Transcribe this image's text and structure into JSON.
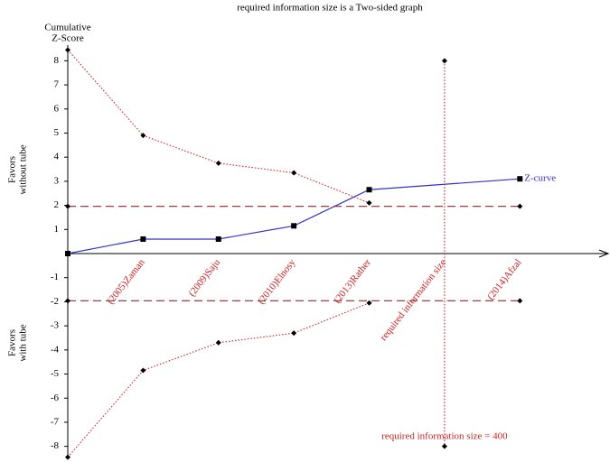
{
  "chart_data": {
    "type": "line",
    "title": "required information size is a Two-sided graph",
    "y_label": [
      "Cumulative",
      "Z-Score"
    ],
    "upper_side_label": [
      "Favors",
      "without tube"
    ],
    "lower_side_label": [
      "Favors",
      "with tube"
    ],
    "categories": [
      null,
      "(2005)Zaman",
      "(2009)Saju",
      "(2010)Elnosy",
      "(2013)Rather",
      "required information size",
      "(2014)Afzal"
    ],
    "xlim": [
      0,
      7.1
    ],
    "ylim": [
      -8.5,
      8.5
    ],
    "yticks": [
      -8,
      -7,
      -6,
      -5,
      -4,
      -3,
      -2,
      -1,
      1,
      2,
      3,
      4,
      5,
      6,
      7,
      8
    ],
    "series": [
      {
        "name": "Z-curve",
        "color": "#3333cc",
        "style": "solid",
        "marker": "square",
        "x": [
          0,
          1,
          2,
          3,
          4,
          6
        ],
        "values": [
          0,
          0.6,
          0.6,
          1.15,
          2.65,
          3.1
        ]
      },
      {
        "color": "#cc2222",
        "style": "dotted",
        "marker": "diamond",
        "x": [
          0,
          1,
          2,
          3,
          4
        ],
        "values": [
          8.45,
          4.9,
          3.75,
          3.35,
          2.1
        ]
      },
      {
        "color": "#cc2222",
        "style": "dotted",
        "marker": "diamond",
        "x": [
          0,
          1,
          2,
          3,
          4
        ],
        "values": [
          -8.45,
          -4.85,
          -3.7,
          -3.3,
          -2.05
        ]
      },
      {
        "color": "#8b2a2a",
        "style": "dashed",
        "marker": "diamond",
        "x": [
          0,
          6
        ],
        "values": [
          1.96,
          1.96
        ]
      },
      {
        "color": "#8b2a2a",
        "style": "dashed",
        "marker": "diamond",
        "x": [
          0,
          6
        ],
        "values": [
          -1.96,
          -1.96
        ]
      },
      {
        "color": "#cc2222",
        "style": "dotted",
        "marker": "diamond",
        "x": [
          5,
          5
        ],
        "values": [
          8,
          -8
        ]
      }
    ],
    "annotation": "required information size = 400"
  }
}
